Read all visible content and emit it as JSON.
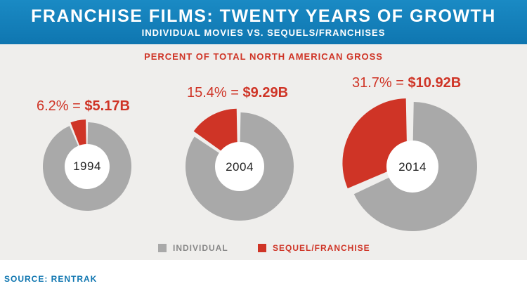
{
  "header": {
    "title": "FRANCHISE FILMS: TWENTY YEARS OF GROWTH",
    "subtitle": "INDIVIDUAL MOVIES VS. SEQUELS/FRANCHISES"
  },
  "colors": {
    "individual": "#a9a9a9",
    "franchise": "#cf3426",
    "header": "#0f76b0",
    "panel": "#efeeec"
  },
  "chart_data": {
    "type": "pie",
    "title": "PERCENT OF TOTAL NORTH AMERICAN GROSS",
    "series_names": [
      "INDIVIDUAL",
      "SEQUEL/FRANCHISE"
    ],
    "charts": [
      {
        "year": "1994",
        "franchise_percent": 6.2,
        "percent_label": "6.2%",
        "gross_label": "$5.17B"
      },
      {
        "year": "2004",
        "franchise_percent": 15.4,
        "percent_label": "15.4%",
        "gross_label": "$9.29B"
      },
      {
        "year": "2014",
        "franchise_percent": 31.7,
        "percent_label": "31.7%",
        "gross_label": "$10.92B"
      }
    ],
    "legend_position": "bottom"
  },
  "legend": {
    "individual": "INDIVIDUAL",
    "franchise": "SEQUEL/FRANCHISE"
  },
  "source": "SOURCE: RENTRAK"
}
